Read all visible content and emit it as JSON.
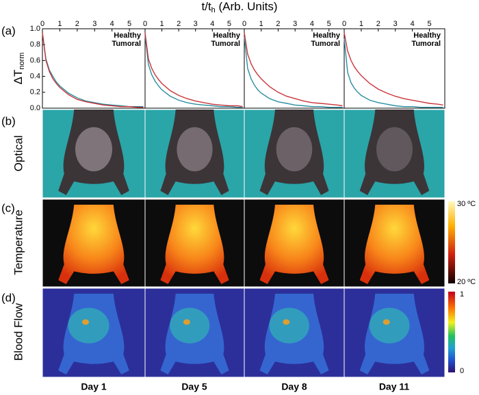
{
  "figure": {
    "xlabel": {
      "main": "t/t",
      "sub": "h",
      "rest": " (Arb. Units)"
    },
    "ylabel": {
      "main": "ΔT",
      "sub": "norm"
    },
    "panel_labels": [
      "(a)",
      "(b)",
      "(c)",
      "(d)"
    ],
    "row_labels": [
      "Optical",
      "Temperature",
      "Blood Flow"
    ],
    "day_labels": [
      "Day 1",
      "Day 5",
      "Day 8",
      "Day 11"
    ],
    "temperature_scale": [
      "30 ºC",
      "20 ºC"
    ],
    "flow_scale": [
      "1",
      "0"
    ]
  },
  "chart_data": [
    {
      "type": "line",
      "x": [
        0,
        0.2,
        0.4,
        0.6,
        0.8,
        1,
        1.5,
        2,
        2.5,
        3,
        3.5,
        4,
        4.5,
        5,
        5.5,
        5.8
      ],
      "series": [
        {
          "name": "Healthy",
          "color": "#2a8fa0",
          "values": [
            0.95,
            0.62,
            0.48,
            0.4,
            0.33,
            0.28,
            0.19,
            0.13,
            0.09,
            0.07,
            0.05,
            0.04,
            0.03,
            0.02,
            0.02,
            0.02
          ]
        },
        {
          "name": "Tumoral",
          "color": "#c8343a",
          "values": [
            0.95,
            0.6,
            0.46,
            0.37,
            0.31,
            0.26,
            0.17,
            0.11,
            0.08,
            0.06,
            0.04,
            0.03,
            0.02,
            0.02,
            0.01,
            0.01
          ]
        }
      ],
      "xlim": [
        0,
        5.9
      ],
      "ylim": [
        0,
        1.0
      ],
      "xticks": [
        0,
        1,
        2,
        3,
        4,
        5
      ],
      "yticks": [
        {
          "value": 0,
          "label": "0.0"
        },
        {
          "value": 0.2,
          "label": "0.2"
        },
        {
          "value": 0.4,
          "label": "0.4"
        },
        {
          "value": 0.6,
          "label": "0.6"
        },
        {
          "value": 0.8,
          "label": "0.8"
        },
        {
          "value": 1.0,
          "label": "1.0"
        }
      ]
    },
    {
      "type": "line",
      "x": [
        0,
        0.2,
        0.4,
        0.6,
        0.8,
        1,
        1.5,
        2,
        2.5,
        3,
        3.5,
        4,
        4.5,
        5,
        5.5,
        5.8
      ],
      "series": [
        {
          "name": "Healthy",
          "color": "#2a8fa0",
          "values": [
            0.92,
            0.55,
            0.42,
            0.34,
            0.28,
            0.23,
            0.15,
            0.1,
            0.07,
            0.05,
            0.04,
            0.03,
            0.02,
            0.02,
            0.01,
            0.01
          ]
        },
        {
          "name": "Tumoral",
          "color": "#c8343a",
          "values": [
            0.95,
            0.62,
            0.5,
            0.42,
            0.36,
            0.31,
            0.22,
            0.16,
            0.12,
            0.09,
            0.07,
            0.05,
            0.04,
            0.03,
            0.03,
            0.02
          ]
        }
      ],
      "xlim": [
        0,
        5.9
      ],
      "ylim": [
        0,
        1.0
      ],
      "xticks": [
        0,
        1,
        2,
        3,
        4,
        5
      ]
    },
    {
      "type": "line",
      "x": [
        0,
        0.2,
        0.4,
        0.6,
        0.8,
        1,
        1.5,
        2,
        2.5,
        3,
        3.5,
        4,
        4.5,
        5,
        5.5,
        5.8
      ],
      "series": [
        {
          "name": "Healthy",
          "color": "#2a8fa0",
          "values": [
            0.9,
            0.5,
            0.37,
            0.29,
            0.23,
            0.19,
            0.12,
            0.08,
            0.06,
            0.04,
            0.03,
            0.02,
            0.02,
            0.01,
            0.01,
            0.01
          ]
        },
        {
          "name": "Tumoral",
          "color": "#c8343a",
          "values": [
            0.95,
            0.68,
            0.56,
            0.48,
            0.42,
            0.37,
            0.27,
            0.2,
            0.15,
            0.12,
            0.09,
            0.07,
            0.06,
            0.05,
            0.04,
            0.03
          ]
        }
      ],
      "xlim": [
        0,
        5.9
      ],
      "ylim": [
        0,
        1.0
      ],
      "xticks": [
        0,
        1,
        2,
        3,
        4,
        5
      ]
    },
    {
      "type": "line",
      "x": [
        0,
        0.2,
        0.4,
        0.6,
        0.8,
        1,
        1.5,
        2,
        2.5,
        3,
        3.5,
        4,
        4.5,
        5,
        5.5,
        5.8
      ],
      "series": [
        {
          "name": "Healthy",
          "color": "#2a8fa0",
          "values": [
            0.88,
            0.45,
            0.32,
            0.25,
            0.2,
            0.16,
            0.1,
            0.07,
            0.05,
            0.03,
            0.02,
            0.02,
            0.01,
            0.01,
            0.01,
            0.01
          ]
        },
        {
          "name": "Tumoral",
          "color": "#c8343a",
          "values": [
            0.95,
            0.72,
            0.6,
            0.52,
            0.46,
            0.41,
            0.31,
            0.24,
            0.19,
            0.15,
            0.12,
            0.1,
            0.08,
            0.06,
            0.05,
            0.04
          ]
        }
      ],
      "xlim": [
        0,
        5.9
      ],
      "ylim": [
        0,
        1.0
      ],
      "xticks": [
        0,
        1,
        2,
        3,
        4,
        5
      ]
    }
  ]
}
